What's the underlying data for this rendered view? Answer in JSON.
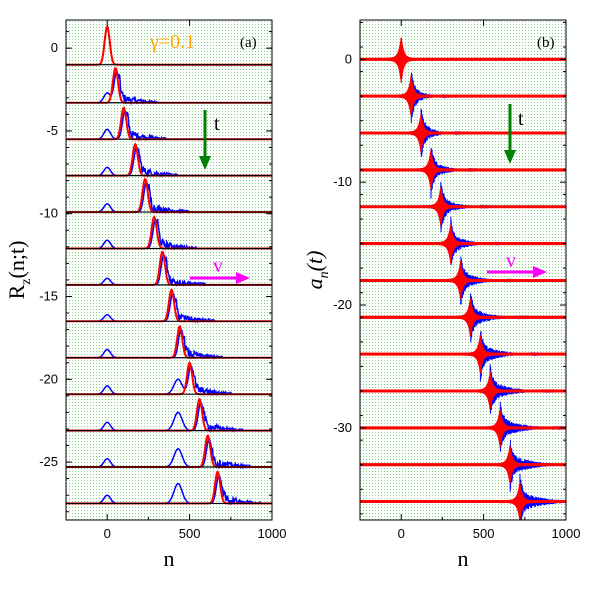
{
  "chart_data": [
    {
      "panel_label": "(a)",
      "type": "line",
      "annotation": "γ=0.1",
      "annotation_color": "#ffa500",
      "xlabel": "n",
      "ylabel_main": "R",
      "ylabel_sub": "z",
      "ylabel_rest": "(n;t)",
      "xlim": [
        -250,
        1000
      ],
      "ylim": [
        -28.5,
        1.7
      ],
      "xticks": [
        0,
        500,
        1000
      ],
      "xtick_labels": [
        "0",
        "500",
        "1000"
      ],
      "yticks": [
        0,
        -5,
        -10,
        -15,
        -20,
        -25
      ],
      "ytick_labels": [
        "0",
        "-5",
        "-10",
        "-15",
        "-20",
        "-25"
      ],
      "background": "dotted-green",
      "series_colors": {
        "numeric": "#0000ff",
        "fit": "#ff0000"
      },
      "time_arrow_label": "t",
      "time_arrow_color": "#008000",
      "velocity_arrow_label": "v",
      "velocity_arrow_color": "#ff00ff",
      "offsets": [
        -1,
        -3.3,
        -5.5,
        -7.7,
        -9.9,
        -12.1,
        -14.3,
        -16.5,
        -18.7,
        -20.9,
        -23.1,
        -25.3,
        -27.5
      ],
      "red_peak_positions": [
        0,
        50,
        100,
        170,
        230,
        285,
        335,
        390,
        440,
        500,
        560,
        610,
        670
      ],
      "red_peak_heights": [
        2.3,
        2.1,
        1.9,
        1.9,
        2.0,
        1.9,
        2.0,
        1.9,
        1.9,
        1.9,
        1.9,
        1.9,
        1.9
      ],
      "blue_origin_bump_heights": [
        0,
        0.6,
        0.6,
        0.5,
        0.5,
        0.5,
        0.4,
        0.4,
        0.5,
        0.5,
        0.5,
        0.5,
        0.5
      ],
      "blue_second_bump": {
        "positions": [
          0,
          0,
          0,
          0,
          0,
          0,
          0,
          0,
          0,
          430,
          430,
          430,
          430
        ],
        "heights": [
          0,
          0,
          0,
          0,
          0,
          0,
          0,
          0,
          0,
          0.9,
          1.1,
          1.1,
          1.2
        ]
      }
    },
    {
      "panel_label": "(b)",
      "type": "line",
      "xlabel": "n",
      "ylabel_main": "a",
      "ylabel_sub": "n",
      "ylabel_rest": "(t)",
      "xlim": [
        -250,
        1000
      ],
      "ylim": [
        -37.5,
        3.2
      ],
      "xticks": [
        0,
        500,
        1000
      ],
      "xtick_labels": [
        "0",
        "500",
        "1000"
      ],
      "yticks": [
        0,
        -10,
        -20,
        -30
      ],
      "ytick_labels": [
        "0",
        "-10",
        "-20",
        "-30"
      ],
      "background": "dotted-green",
      "series_colors": {
        "numeric": "#0000ff",
        "fit": "#ff0000"
      },
      "time_arrow_label": "t",
      "time_arrow_color": "#008000",
      "velocity_arrow_label": "v",
      "velocity_arrow_color": "#ff00ff",
      "offsets": [
        0,
        -3,
        -6,
        -9,
        -12,
        -15,
        -18,
        -21,
        -24,
        -27,
        -30,
        -33,
        -36
      ],
      "packet_centers": [
        0,
        60,
        120,
        180,
        240,
        300,
        360,
        420,
        480,
        540,
        600,
        660,
        720
      ],
      "packet_amplitudes": [
        1.8,
        1.6,
        1.5,
        1.5,
        1.5,
        1.5,
        1.5,
        1.5,
        1.5,
        1.5,
        1.5,
        1.5,
        1.5
      ]
    }
  ]
}
